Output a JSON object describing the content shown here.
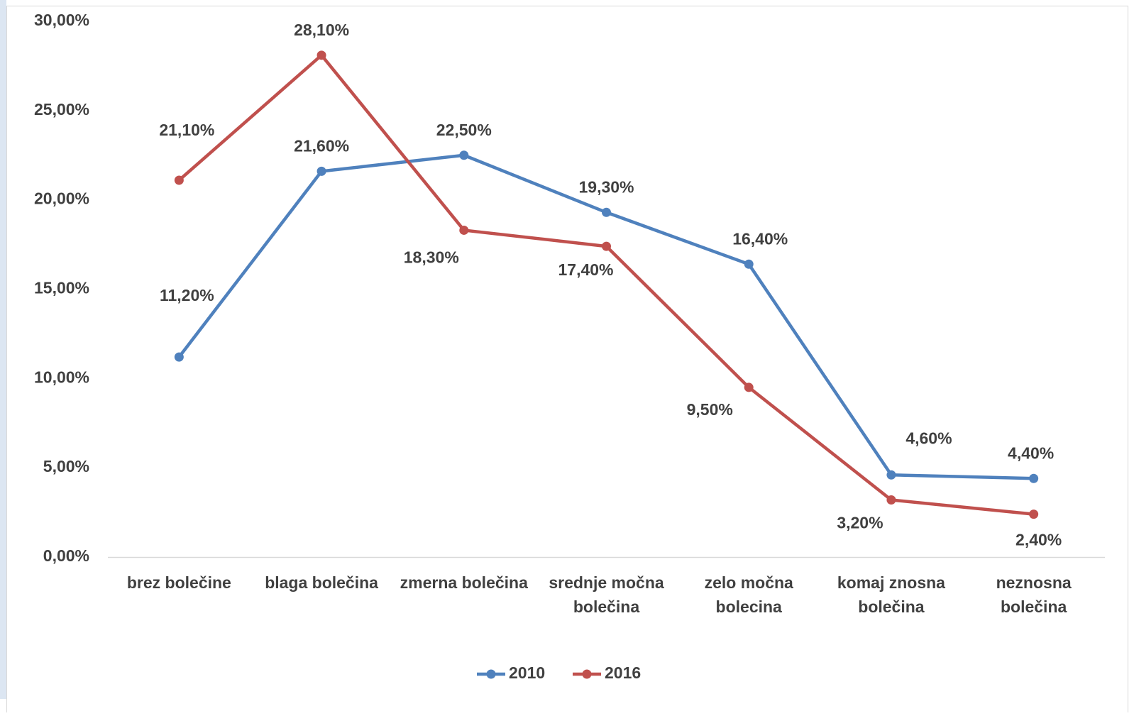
{
  "chart_data": {
    "type": "line",
    "categories": [
      "brez bolečine",
      "blaga bolečina",
      "zmerna bolečina",
      "srednje močna bolečina",
      "zelo močna bolecina",
      "komaj znosna bolečina",
      "neznosna bolečina"
    ],
    "series": [
      {
        "name": "2010",
        "color": "#4f81bd",
        "values": [
          11.2,
          21.6,
          22.5,
          19.3,
          16.4,
          4.6,
          4.4
        ],
        "value_labels": [
          "11,20%",
          "21,60%",
          "22,50%",
          "19,30%",
          "16,40%",
          "4,60%",
          "4,40%"
        ]
      },
      {
        "name": "2016",
        "color": "#c0504d",
        "values": [
          21.1,
          28.1,
          18.3,
          17.4,
          9.5,
          3.2,
          2.4
        ],
        "value_labels": [
          "21,10%",
          "28,10%",
          "18,30%",
          "17,40%",
          "9,50%",
          "3,20%",
          "2,40%"
        ]
      }
    ],
    "ylim": [
      0,
      30
    ],
    "yticks": [
      {
        "value": 0,
        "label": "0,00%"
      },
      {
        "value": 5,
        "label": "5,00%"
      },
      {
        "value": 10,
        "label": "10,00%"
      },
      {
        "value": 15,
        "label": "15,00%"
      },
      {
        "value": 20,
        "label": "20,00%"
      },
      {
        "value": 25,
        "label": "25,00%"
      },
      {
        "value": 30,
        "label": "30,00%"
      }
    ],
    "grid": false,
    "legend": "bottom"
  }
}
